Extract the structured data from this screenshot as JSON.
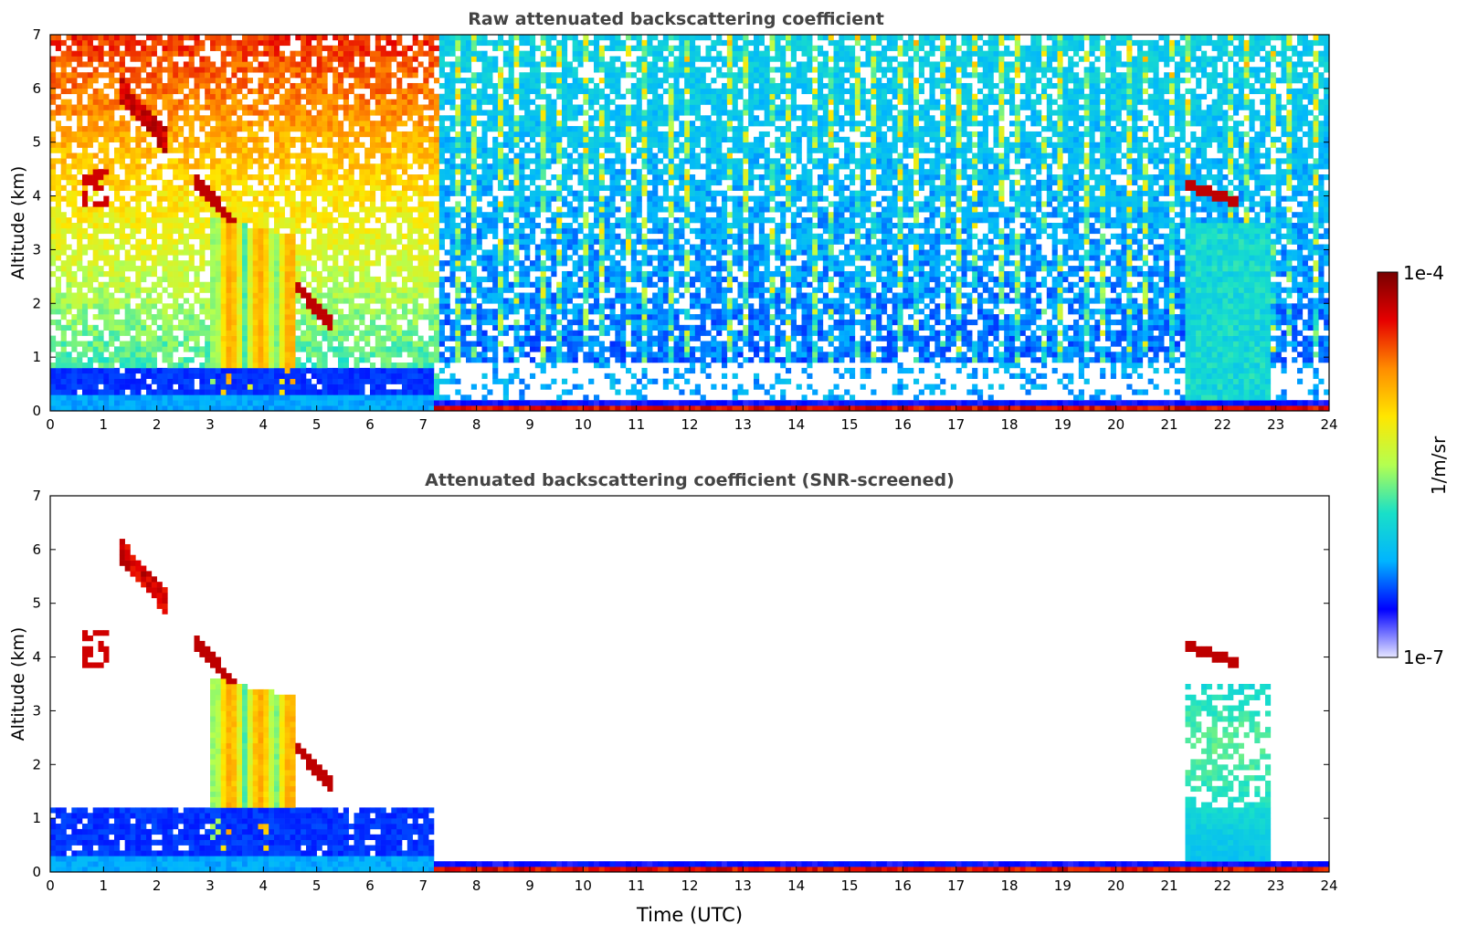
{
  "chart_data": [
    {
      "type": "heatmap",
      "title": "Raw attenuated backscattering coefficient",
      "xlabel": "",
      "ylabel": "Altitude (km)",
      "xlim": [
        0,
        24
      ],
      "ylim": [
        0,
        7
      ],
      "x_ticks": [
        "0",
        "1",
        "2",
        "3",
        "4",
        "5",
        "6",
        "7",
        "8",
        "9",
        "10",
        "11",
        "12",
        "13",
        "14",
        "15",
        "16",
        "17",
        "18",
        "19",
        "20",
        "21",
        "22",
        "23",
        "24"
      ],
      "y_ticks": [
        "0",
        "1",
        "2",
        "3",
        "4",
        "5",
        "6",
        "7"
      ],
      "features": [
        {
          "kind": "aerosol_layer",
          "x_start": 0,
          "x_end": 7.3,
          "alt_top": 0.8
        },
        {
          "kind": "precipitation_shafts",
          "x_start": 3.0,
          "x_end": 4.6,
          "alt_top": 3.6
        },
        {
          "kind": "cloud_layer",
          "x_start": 2.7,
          "x_end": 5.3,
          "alt_start": 4.3,
          "alt_end": 1.6
        },
        {
          "kind": "cloud_layer",
          "x_start": 1.3,
          "x_end": 2.2,
          "alt_start": 6.0,
          "alt_end": 5.0
        },
        {
          "kind": "cloud_layer",
          "x_start": 21.3,
          "x_end": 22.3,
          "alt_start": 4.2,
          "alt_end": 3.9
        },
        {
          "kind": "surface_layer",
          "x_start": 7.2,
          "x_end": 24,
          "alt_top": 0.15
        },
        {
          "kind": "aerosol_layer",
          "x_start": 21.3,
          "x_end": 22.8,
          "alt_top": 3.5
        }
      ]
    },
    {
      "type": "heatmap",
      "title": "Attenuated backscattering coefficient (SNR-screened)",
      "xlabel": "Time (UTC)",
      "ylabel": "Altitude (km)",
      "xlim": [
        0,
        24
      ],
      "ylim": [
        0,
        7
      ],
      "x_ticks": [
        "0",
        "1",
        "2",
        "3",
        "4",
        "5",
        "6",
        "7",
        "8",
        "9",
        "10",
        "11",
        "12",
        "13",
        "14",
        "15",
        "16",
        "17",
        "18",
        "19",
        "20",
        "21",
        "22",
        "23",
        "24"
      ],
      "y_ticks": [
        "0",
        "1",
        "2",
        "3",
        "4",
        "5",
        "6",
        "7"
      ],
      "features": [
        {
          "kind": "aerosol_layer",
          "x_start": 0,
          "x_end": 7.2,
          "alt_top": 1.2
        },
        {
          "kind": "precipitation_shafts",
          "x_start": 3.0,
          "x_end": 4.6,
          "alt_top": 3.6
        },
        {
          "kind": "cloud_layer",
          "x_start": 2.7,
          "x_end": 5.3,
          "alt_start": 4.3,
          "alt_end": 1.6
        },
        {
          "kind": "cloud_layer",
          "x_start": 1.4,
          "x_end": 2.2,
          "alt_start": 6.0,
          "alt_end": 4.6
        },
        {
          "kind": "cloud_layer",
          "x_start": 21.3,
          "x_end": 22.3,
          "alt_start": 4.2,
          "alt_end": 3.9
        },
        {
          "kind": "surface_layer",
          "x_start": 7.2,
          "x_end": 24,
          "alt_top": 0.25
        },
        {
          "kind": "aerosol_layer",
          "x_start": 21.3,
          "x_end": 22.8,
          "alt_top": 3.5
        }
      ]
    }
  ],
  "colorbar": {
    "max_label": "1e-4",
    "min_label": "1e-7",
    "unit_label": "1/m/sr",
    "colors": [
      "#e6e6ff",
      "#0000ff",
      "#00b4ff",
      "#19e0c8",
      "#b4ff50",
      "#ffe600",
      "#ff8c00",
      "#e60000",
      "#780000"
    ]
  }
}
